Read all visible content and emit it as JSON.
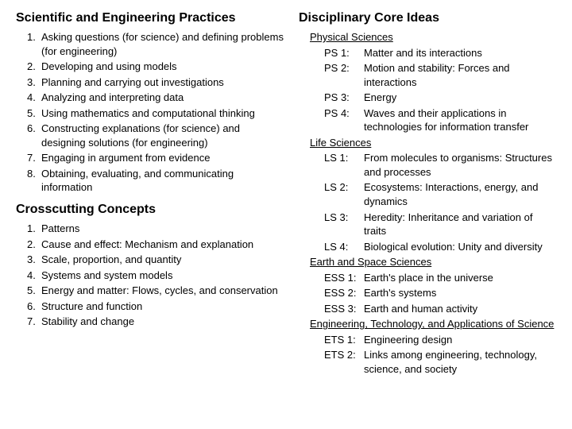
{
  "left": {
    "practices_heading": "Scientific and Engineering Practices",
    "practices": [
      "Asking questions (for science) and defining problems (for engineering)",
      "Developing and using models",
      "Planning and carrying out investigations",
      "Analyzing and interpreting data",
      "Using mathematics and computational thinking",
      "Constructing explanations (for science) and designing solutions (for engineering)",
      "Engaging in argument from evidence",
      "Obtaining, evaluating, and communicating information"
    ],
    "concepts_heading": "Crosscutting Concepts",
    "concepts": [
      "Patterns",
      "Cause and effect: Mechanism and explanation",
      "Scale, proportion, and quantity",
      "Systems and system models",
      "Energy and matter: Flows, cycles, and conservation",
      "Structure and function",
      "Stability and change"
    ]
  },
  "right": {
    "heading": "Disciplinary Core Ideas",
    "groups": [
      {
        "title": "Physical Sciences",
        "items": [
          {
            "code": "PS 1:",
            "desc": "Matter and its interactions"
          },
          {
            "code": "PS 2:",
            "desc": "Motion and stability: Forces and interactions"
          },
          {
            "code": "PS 3:",
            "desc": "Energy"
          },
          {
            "code": "PS 4:",
            "desc": "Waves and their applications in technologies for information transfer"
          }
        ]
      },
      {
        "title": "Life Sciences",
        "items": [
          {
            "code": "LS 1:",
            "desc": "From molecules to organisms: Structures and processes"
          },
          {
            "code": "LS 2:",
            "desc": "Ecosystems: Interactions, energy, and dynamics"
          },
          {
            "code": "LS 3:",
            "desc": "Heredity: Inheritance and variation of traits"
          },
          {
            "code": "LS 4:",
            "desc": "Biological evolution: Unity and diversity"
          }
        ]
      },
      {
        "title": "Earth and Space Sciences",
        "items": [
          {
            "code": "ESS 1:",
            "desc": "Earth's place in the universe"
          },
          {
            "code": "ESS 2:",
            "desc": "Earth's systems"
          },
          {
            "code": "ESS 3:",
            "desc": "Earth and human activity"
          }
        ]
      },
      {
        "title": "Engineering, Technology, and Applications of Science",
        "items": [
          {
            "code": "ETS 1:",
            "desc": "Engineering design"
          },
          {
            "code": "ETS 2:",
            "desc": "Links among engineering, technology, science, and society"
          }
        ]
      }
    ]
  }
}
